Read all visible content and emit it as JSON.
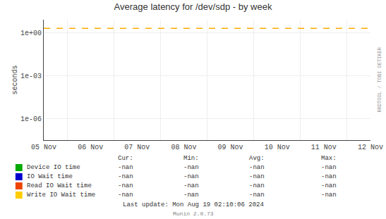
{
  "chart_data": {
    "type": "line",
    "title": "Average latency for /dev/sdp - by week",
    "ylabel": "seconds",
    "categories": [
      "05 Nov",
      "06 Nov",
      "07 Nov",
      "08 Nov",
      "09 Nov",
      "10 Nov",
      "11 Nov",
      "12 Nov"
    ],
    "series": [
      {
        "name": "Device IO time",
        "color": "#00aa00",
        "values": [
          null,
          null,
          null,
          null,
          null,
          null,
          null,
          null
        ],
        "legend_values": [
          "-nan",
          "-nan",
          "-nan",
          "-nan"
        ]
      },
      {
        "name": "IO Wait time",
        "color": "#0000cc",
        "values": [
          null,
          null,
          null,
          null,
          null,
          null,
          null,
          null
        ],
        "legend_values": [
          "-nan",
          "-nan",
          "-nan",
          "-nan"
        ]
      },
      {
        "name": "Read IO Wait time",
        "color": "#ee4400",
        "values": [
          null,
          null,
          null,
          null,
          null,
          null,
          null,
          null
        ],
        "legend_values": [
          "-nan",
          "-nan",
          "-nan",
          "-nan"
        ]
      },
      {
        "name": "Write IO Wait time",
        "color": "#ffcc00",
        "values": [
          null,
          null,
          null,
          null,
          null,
          null,
          null,
          null
        ],
        "legend_values": [
          "-nan",
          "-nan",
          "-nan",
          "-nan"
        ]
      }
    ],
    "legend": "bottom",
    "legend_columns": [
      "Cur:",
      "Min:",
      "Avg:",
      "Max:"
    ],
    "reference_lines": [
      {
        "value": 2.0,
        "color": "#ffaa00",
        "line_style": "dashed"
      }
    ],
    "log": "y",
    "ylim": [
      3e-08,
      8.0
    ],
    "yticks": [
      {
        "value": 1e-06,
        "label": "1e-06"
      },
      {
        "value": 0.001,
        "label": "1e-03"
      },
      {
        "value": 1.0,
        "label": "1e+00"
      }
    ],
    "grid": true,
    "annotations": [
      "Last update: Mon Aug 19 02:10:06 2024",
      "Munin 2.0.73",
      "RRDTOOL / TOBI OETIKER"
    ]
  }
}
